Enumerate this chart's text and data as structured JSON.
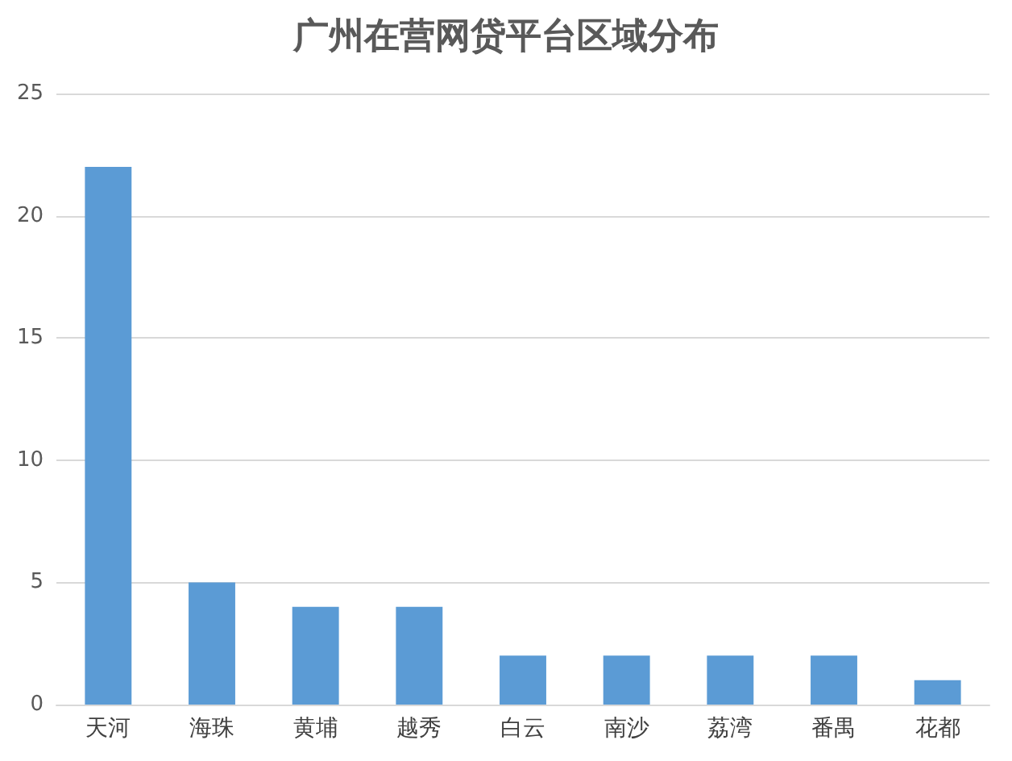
{
  "chart_data": {
    "type": "bar",
    "title": "广州在营网贷平台区域分布",
    "categories": [
      "天河",
      "海珠",
      "黄埔",
      "越秀",
      "白云",
      "南沙",
      "荔湾",
      "番禺",
      "花都"
    ],
    "values": [
      22,
      5,
      4,
      4,
      2,
      2,
      2,
      2,
      1
    ],
    "color": "#5b9bd5",
    "ylim": [
      0,
      25
    ],
    "yticks": [
      0,
      5,
      10,
      15,
      20,
      25
    ],
    "grid": "y"
  }
}
